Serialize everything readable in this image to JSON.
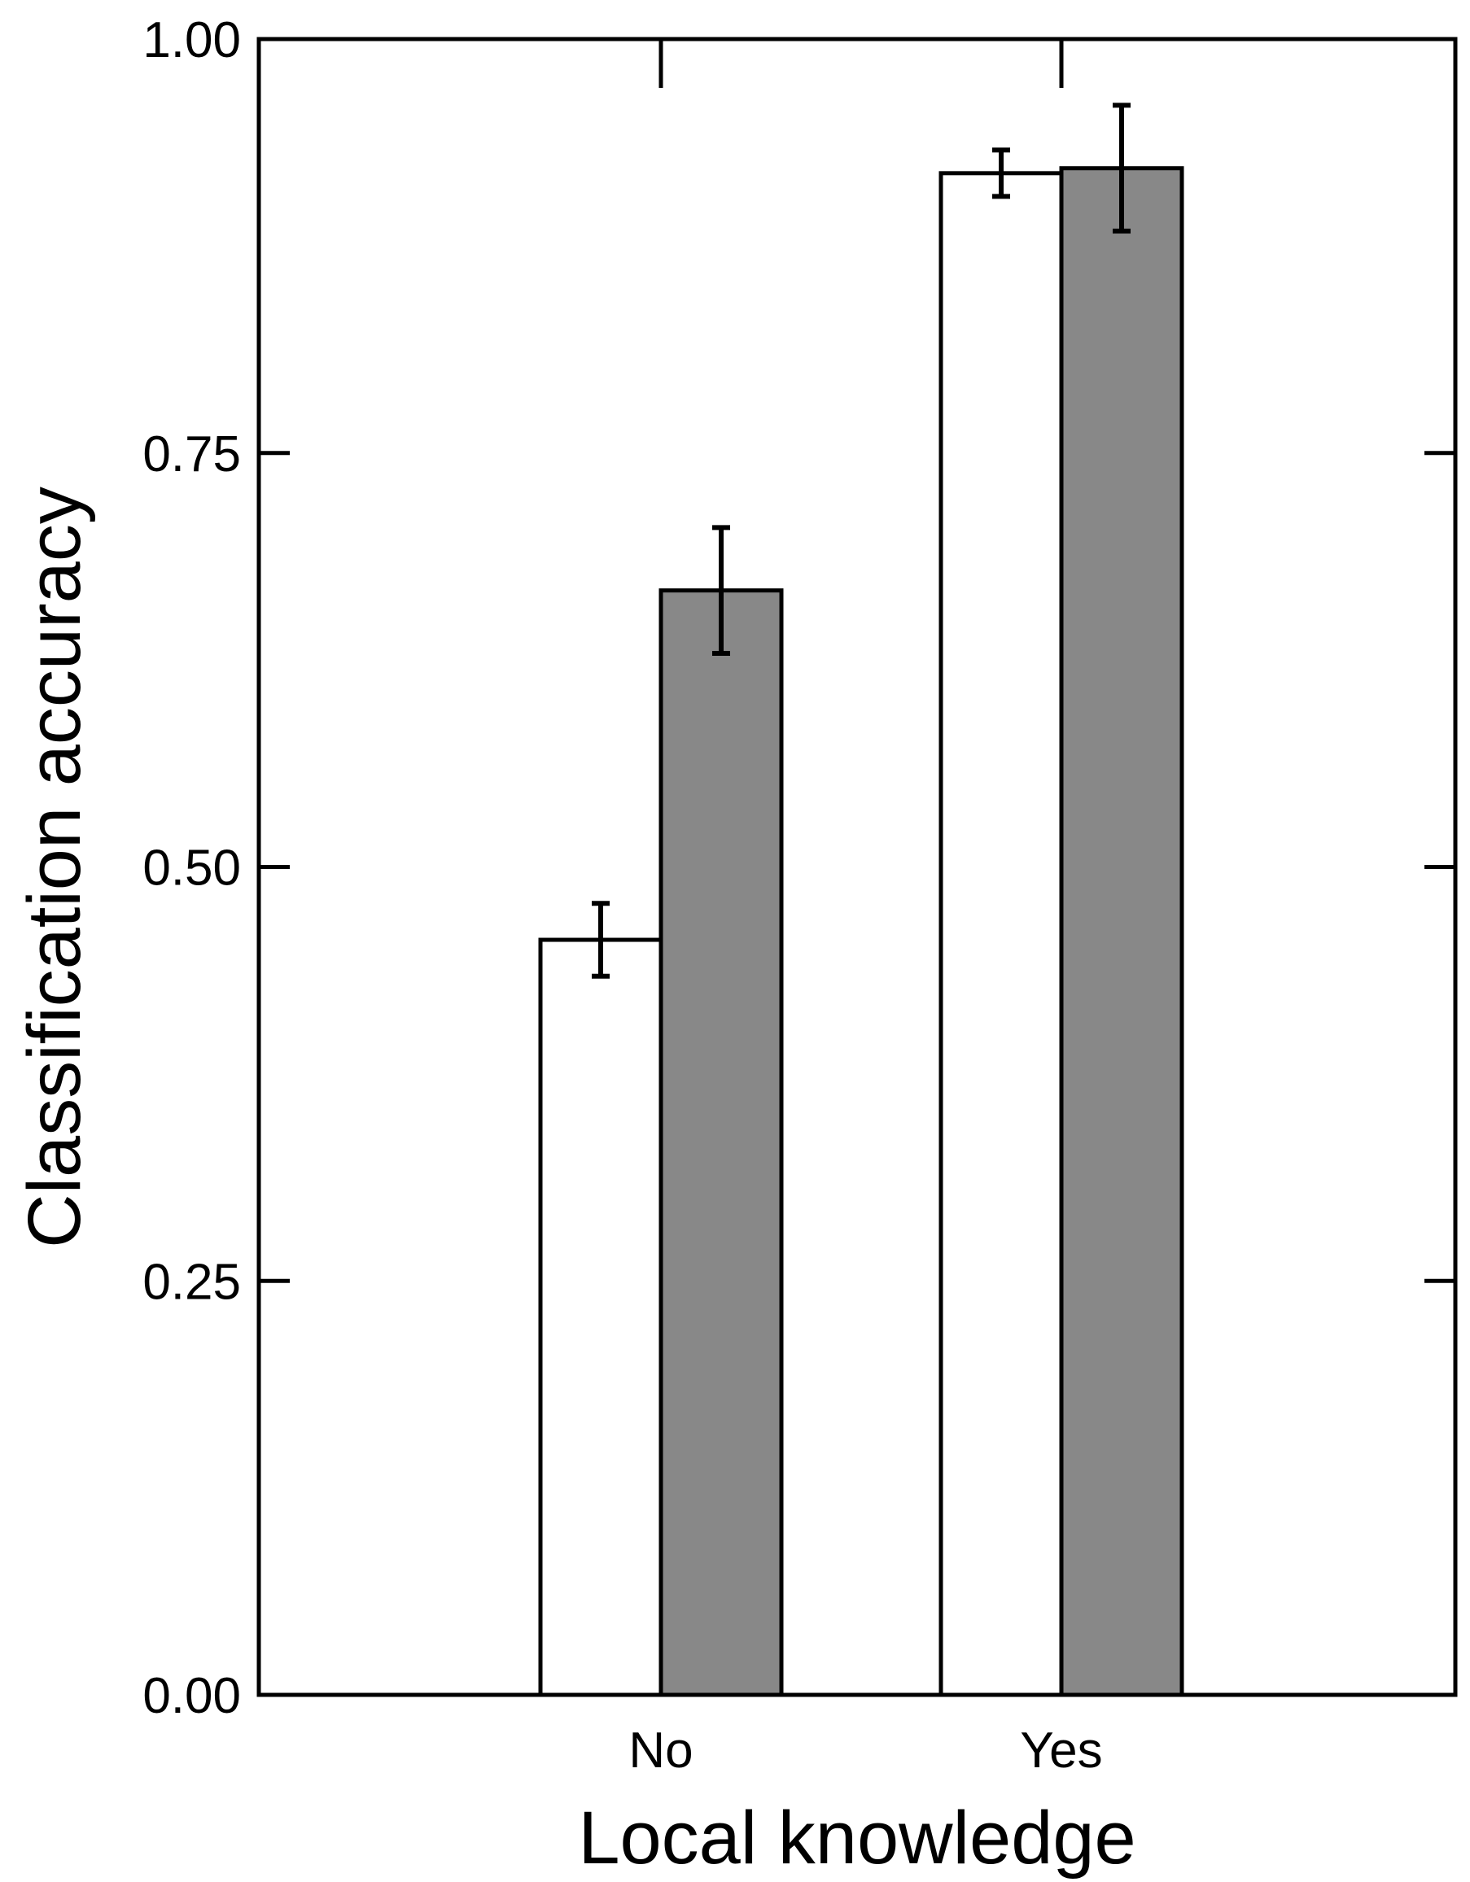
{
  "chart_data": {
    "type": "bar",
    "title": "",
    "xlabel": "Local knowledge",
    "ylabel": "Classification accuracy",
    "categories": [
      "No",
      "Yes"
    ],
    "ylim": [
      0,
      1
    ],
    "yticks": [
      "0.00",
      "0.25",
      "0.50",
      "0.75",
      "1.00"
    ],
    "ytick_values": [
      0,
      0.25,
      0.5,
      0.75,
      1.0
    ],
    "grid": false,
    "legend": "none",
    "series": [
      {
        "color": "#ffffff",
        "values": [
          0.456,
          0.919
        ],
        "error": [
          0.022,
          0.014
        ]
      },
      {
        "color": "#888888",
        "values": [
          0.667,
          0.922
        ],
        "error": [
          0.038,
          0.038
        ]
      }
    ]
  }
}
